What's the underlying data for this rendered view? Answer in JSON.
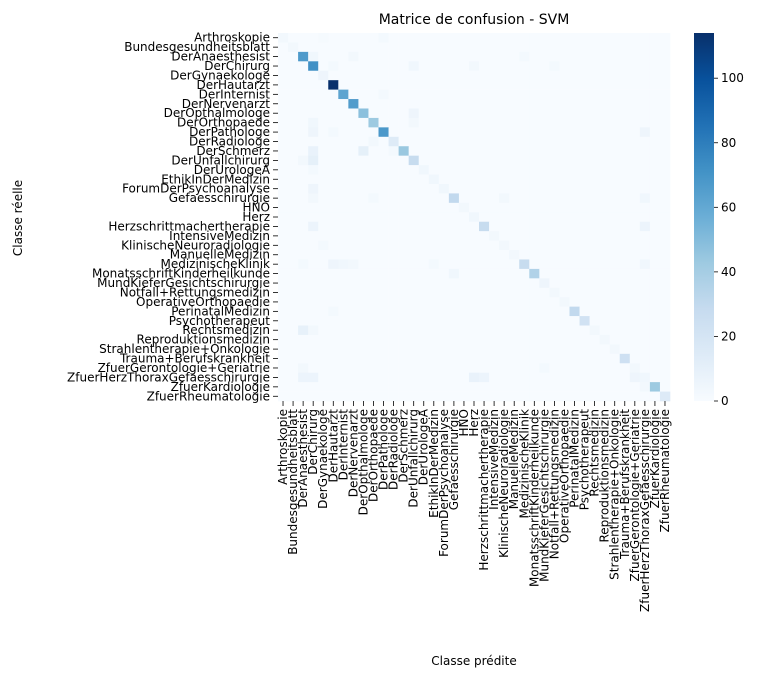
{
  "chart_data": {
    "type": "heatmap",
    "title": "Matrice de confusion - SVM",
    "xlabel": "Classe prédite",
    "ylabel": "Classe réelle",
    "colormap": "Blues",
    "colorbar": {
      "min": 0,
      "max": 114,
      "ticks": [
        0,
        20,
        40,
        60,
        80,
        100
      ]
    },
    "grid": false,
    "labels": [
      "Arthroskopie",
      "Bundesgesundheitsblatt",
      "DerAnaesthesist",
      "DerChirurg",
      "DerGynaekologe",
      "DerHautarzt",
      "DerInternist",
      "DerNervenarzt",
      "DerOpthalmologe",
      "DerOrthopaede",
      "DerPathologe",
      "DerRadiologe",
      "DerSchmerz",
      "DerUnfallchirurg",
      "DerUrologeA",
      "EthikInDerMedizin",
      "ForumDerPsychoanalyse",
      "Gefaesschirurgie",
      "HNO",
      "Herz",
      "Herzschrittmachertherapie",
      "IntensiveMedizin",
      "KlinischeNeuroradiologie",
      "ManuelleMedizin",
      "MedizinischeKlinik",
      "MonatsschriftKinderheilkunde",
      "MundKieferGesichtschirurgie",
      "Notfall+Rettungsmedizin",
      "OperativeOrthopaedie",
      "PerinatalMedizin",
      "Psychotherapeut",
      "Rechtsmedizin",
      "Reproduktionsmedizin",
      "Strahlentherapie+Onkologie",
      "Trauma+Berufskrankheit",
      "ZfuerGerontologie+Geriatrie",
      "ZfuerHerzThoraxGefaesschirurgie",
      "ZfuerKardiologie",
      "ZfuerRheumatologie"
    ],
    "diagonal": [
      3,
      3,
      67,
      72,
      5,
      114,
      62,
      66,
      48,
      43,
      68,
      14,
      44,
      28,
      4,
      4,
      4,
      30,
      3,
      4,
      28,
      3,
      3,
      3,
      28,
      36,
      5,
      3,
      3,
      30,
      22,
      3,
      3,
      3,
      24,
      3,
      4,
      43,
      15
    ],
    "off_diagonal": [
      [
        0,
        10,
        2
      ],
      [
        0,
        4,
        1
      ],
      [
        2,
        3,
        4
      ],
      [
        2,
        7,
        3
      ],
      [
        2,
        24,
        2
      ],
      [
        3,
        5,
        2
      ],
      [
        3,
        13,
        4
      ],
      [
        3,
        19,
        3
      ],
      [
        3,
        27,
        2
      ],
      [
        6,
        10,
        2
      ],
      [
        8,
        13,
        5
      ],
      [
        9,
        3,
        4
      ],
      [
        9,
        13,
        3
      ],
      [
        10,
        3,
        5
      ],
      [
        10,
        5,
        2
      ],
      [
        10,
        36,
        5
      ],
      [
        11,
        9,
        3
      ],
      [
        12,
        3,
        8
      ],
      [
        12,
        8,
        10
      ],
      [
        12,
        11,
        2
      ],
      [
        13,
        3,
        10
      ],
      [
        13,
        2,
        3
      ],
      [
        14,
        3,
        2
      ],
      [
        16,
        3,
        5
      ],
      [
        17,
        3,
        3
      ],
      [
        17,
        9,
        2
      ],
      [
        17,
        22,
        3
      ],
      [
        17,
        36,
        4
      ],
      [
        20,
        3,
        6
      ],
      [
        20,
        36,
        6
      ],
      [
        22,
        4,
        2
      ],
      [
        24,
        2,
        2
      ],
      [
        24,
        5,
        5
      ],
      [
        24,
        6,
        4
      ],
      [
        24,
        7,
        3
      ],
      [
        24,
        15,
        2
      ],
      [
        24,
        36,
        4
      ],
      [
        25,
        17,
        4
      ],
      [
        29,
        5,
        2
      ],
      [
        31,
        3,
        3
      ],
      [
        31,
        2,
        9
      ],
      [
        35,
        2,
        3
      ],
      [
        35,
        26,
        2
      ],
      [
        36,
        2,
        6
      ],
      [
        36,
        3,
        6
      ],
      [
        36,
        19,
        8
      ],
      [
        36,
        20,
        6
      ],
      [
        36,
        35,
        5
      ],
      [
        37,
        36,
        3
      ]
    ]
  }
}
